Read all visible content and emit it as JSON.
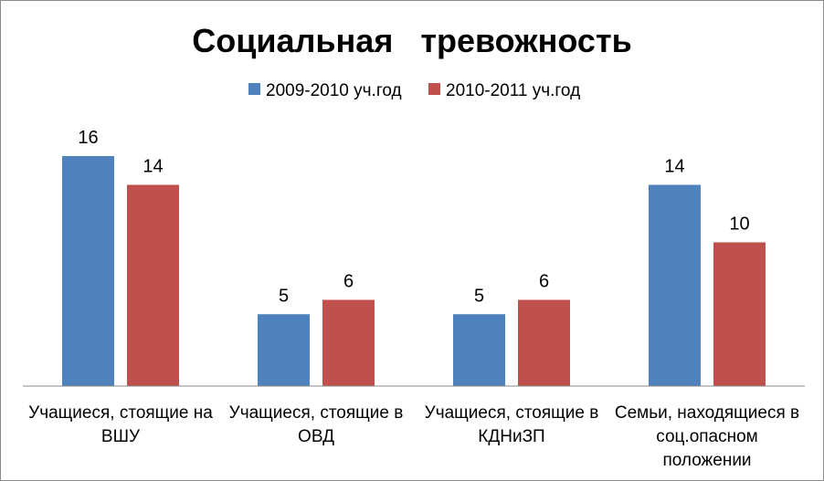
{
  "chart_data": {
    "type": "bar",
    "title": "Социальная   тревожность",
    "categories": [
      [
        "Учащиеся, стоящие на",
        "ВШУ"
      ],
      [
        "Учащиеся, стоящие в",
        "ОВД"
      ],
      [
        "Учащиеся, стоящие в",
        "КДНиЗП"
      ],
      [
        "Семьи, находящиеся в",
        "соц.опасном",
        "положении"
      ]
    ],
    "series": [
      {
        "name": "2009-2010 уч.год",
        "color": "#4f81bd",
        "values": [
          16,
          5,
          5,
          14
        ]
      },
      {
        "name": "2010-2011 уч.год",
        "color": "#c0504d",
        "values": [
          14,
          6,
          6,
          10
        ]
      }
    ],
    "ylim": [
      0,
      16
    ],
    "legend": "top",
    "grid": false,
    "data_labels": true
  }
}
